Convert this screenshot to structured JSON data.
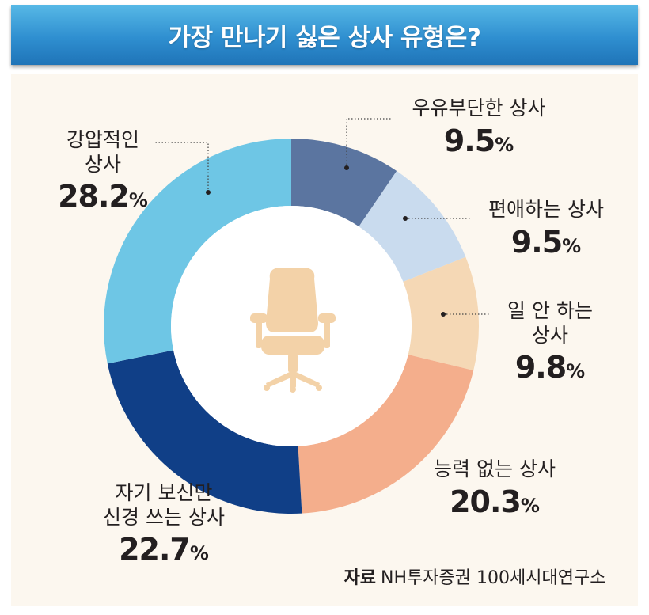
{
  "title": "가장 만나기 싫은 상사 유형은?",
  "source": {
    "label": "자료",
    "text": "NH투자증권 100세시대연구소"
  },
  "chart_data": {
    "type": "pie",
    "donut": true,
    "unit": "%",
    "title": "가장 만나기 싫은 상사 유형은?",
    "slices": [
      {
        "name": "우유부단한 상사",
        "value": 9.5,
        "color": "#5b75a0"
      },
      {
        "name": "편애하는 상사",
        "value": 9.5,
        "color": "#c9dbee"
      },
      {
        "name": "일 안 하는 상사",
        "value": 9.8,
        "color": "#f5d8b5"
      },
      {
        "name": "능력 없는 상사",
        "value": 20.3,
        "color": "#f4ae8c"
      },
      {
        "name": "자기 보신만 신경 쓰는 상사",
        "value": 22.7,
        "color": "#103f87"
      },
      {
        "name": "강압적인 상사",
        "value": 28.2,
        "color": "#6ec6e5"
      }
    ]
  },
  "labels": [
    {
      "lines": [
        "우유부단한 상사"
      ],
      "pct": "9.5"
    },
    {
      "lines": [
        "편애하는 상사"
      ],
      "pct": "9.5"
    },
    {
      "lines": [
        "일 안 하는",
        "상사"
      ],
      "pct": "9.8"
    },
    {
      "lines": [
        "능력 없는 상사"
      ],
      "pct": "20.3"
    },
    {
      "lines": [
        "자기 보신만",
        "신경 쓰는 상사"
      ],
      "pct": "22.7"
    },
    {
      "lines": [
        "강압적인",
        "상사"
      ],
      "pct": "28.2"
    }
  ],
  "center_icon": "office-chair-icon",
  "colors": {
    "title_bar": "#2f8fd0",
    "panel": "#fcf7ef",
    "icon": "#f3d2a8",
    "text": "#231f20"
  }
}
